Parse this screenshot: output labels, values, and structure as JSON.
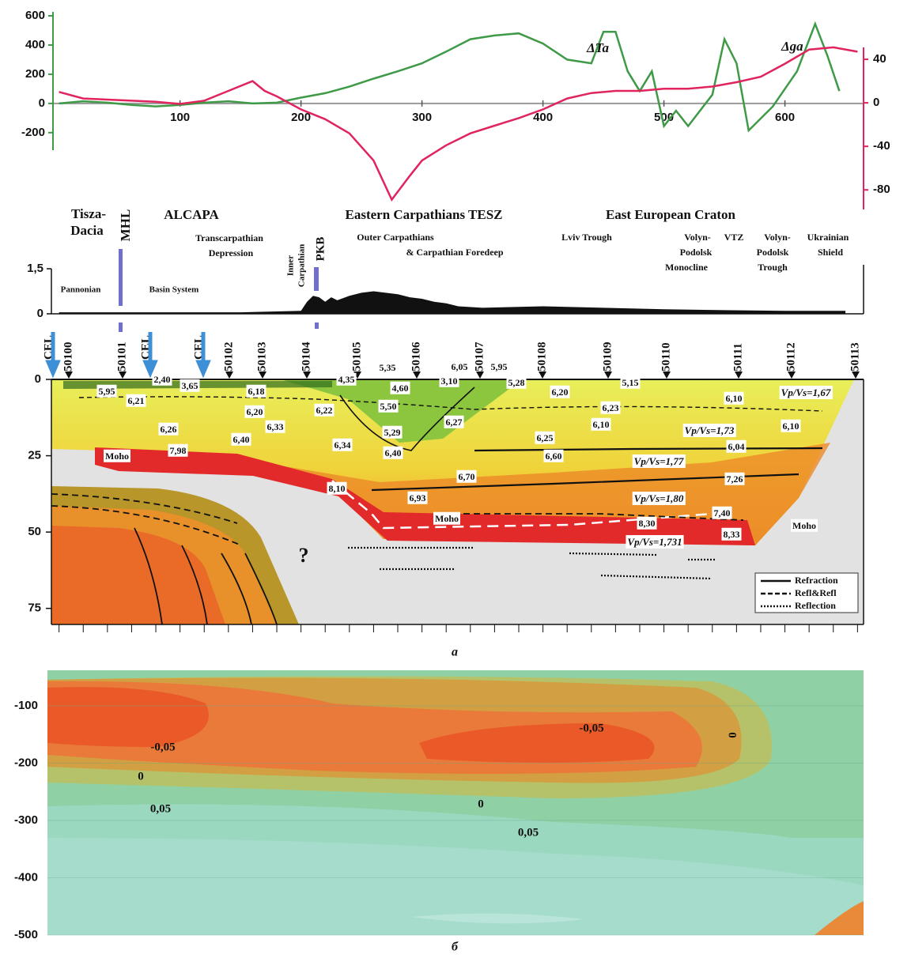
{
  "chart_data": [
    {
      "type": "line",
      "xlim": [
        -5,
        665
      ],
      "xticks": [
        100,
        200,
        300,
        400,
        500,
        600
      ],
      "ylim": [
        -320,
        600
      ],
      "yticks": [
        -200,
        0,
        200,
        400,
        600
      ],
      "y2lim": [
        -98,
        80
      ],
      "y2ticks": [
        -80,
        -40,
        0,
        40
      ],
      "series": [
        {
          "name": "ΔTa",
          "color": "#3f9a48",
          "x": [
            0,
            20,
            40,
            60,
            80,
            100,
            120,
            140,
            160,
            180,
            200,
            220,
            240,
            260,
            280,
            300,
            320,
            340,
            360,
            380,
            400,
            420,
            440,
            450,
            460,
            470,
            480,
            490,
            500,
            510,
            520,
            540,
            550,
            560,
            570,
            590,
            610,
            625,
            635,
            645
          ],
          "values": [
            0,
            15,
            5,
            -10,
            -20,
            -10,
            5,
            15,
            0,
            5,
            40,
            70,
            115,
            170,
            220,
            275,
            355,
            440,
            465,
            480,
            410,
            300,
            275,
            490,
            490,
            220,
            85,
            220,
            -155,
            -50,
            -155,
            60,
            440,
            275,
            -185,
            -20,
            220,
            545,
            330,
            85
          ]
        },
        {
          "name": "Δga",
          "color": "#e0245e",
          "axis": "y2",
          "x": [
            0,
            20,
            40,
            60,
            80,
            100,
            120,
            140,
            160,
            170,
            180,
            200,
            220,
            240,
            260,
            275,
            290,
            300,
            320,
            340,
            360,
            380,
            400,
            420,
            440,
            460,
            480,
            500,
            520,
            540,
            560,
            580,
            600,
            620,
            640,
            660
          ],
          "values": [
            10,
            4,
            3,
            2,
            1,
            -1,
            2,
            11,
            20,
            11,
            6,
            -6,
            -15,
            -28,
            -53,
            -89,
            -67,
            -53,
            -39,
            -28,
            -21,
            -14,
            -6,
            4,
            9,
            11,
            11,
            13,
            13,
            15,
            19,
            24,
            36,
            49,
            51,
            47
          ]
        }
      ]
    },
    {
      "type": "section",
      "region_labels": [
        "Tisza-",
        "Dacia",
        "MHL",
        "ALCAPA",
        "Transcarpathian",
        "Depression",
        "Inner",
        "Carpathian",
        "PKB",
        "Eastern Carpathians TESZ",
        "Outer Carpathians",
        "& Carpathian Foredeep",
        "East European Craton",
        "Lviv Trough",
        "Volyn-",
        "Podolsk",
        "Monocline",
        "VTZ",
        "Volyn-",
        "Podolsk",
        "Trough",
        "Ukrainian",
        "Shield",
        "Pannonian",
        "Basin System"
      ],
      "topography": {
        "x": [
          0,
          50,
          100,
          150,
          200,
          205,
          210,
          215,
          220,
          225,
          230,
          240,
          250,
          260,
          270,
          280,
          290,
          300,
          310,
          320,
          330,
          350,
          400,
          450,
          500,
          550,
          600,
          650
        ],
        "values": [
          0.05,
          0.05,
          0.05,
          0.05,
          0.1,
          0.4,
          0.6,
          0.55,
          0.4,
          0.55,
          0.45,
          0.6,
          0.7,
          0.75,
          0.7,
          0.65,
          0.55,
          0.5,
          0.4,
          0.35,
          0.25,
          0.2,
          0.25,
          0.2,
          0.15,
          0.12,
          0.1,
          0.1
        ],
        "ylim": [
          0,
          1.5
        ],
        "yticks": [
          0,
          {
            "value": 1.5,
            "label": "1,5"
          }
        ]
      },
      "stations": [
        "CEL",
        "50100",
        "50101",
        "CEL",
        "CEL",
        "50102",
        "50103",
        "50104",
        "50105",
        "50106",
        "50107",
        "50108",
        "50109",
        "50110",
        "50111",
        "50112",
        "50113"
      ],
      "ylim": [
        0,
        80
      ],
      "yticks": [
        0,
        25,
        50,
        75
      ],
      "velocity_labels": [
        "2,40",
        "5,95",
        "3,65",
        "6,21",
        "6,18",
        "6,20",
        "6,22",
        "6,33",
        "6,26",
        "6,40",
        "7,98",
        "6,34",
        "4,35",
        "5,35",
        "4,60",
        "5,50",
        "5,29",
        "6,40",
        "6,05",
        "5,95",
        "3,10",
        "5,28",
        "6,27",
        "6,20",
        "5,15",
        "6,23",
        "6,10",
        "6,25",
        "6,60",
        "6,70",
        "8,10",
        "6,93",
        "6,10",
        "6,10",
        "6,04",
        "7,26",
        "7,40",
        "8,30",
        "8,33"
      ],
      "ratio_labels": [
        "Vp/Vs=1,67",
        "Vp/Vs=1,73",
        "Vp/Vs=1,77",
        "Vp/Vs=1,80",
        "Vp/Vs=1,731"
      ],
      "moho_labels": [
        "Moho",
        "Moho",
        "Moho"
      ],
      "question": "?",
      "legend": [
        {
          "name": "Refraction",
          "style": "solid"
        },
        {
          "name": "Refl&Refl",
          "style": "dashed"
        },
        {
          "name": "Reflection",
          "style": "dotted"
        }
      ],
      "caption": "a"
    },
    {
      "type": "contour",
      "ylim": [
        -38,
        -500
      ],
      "yticks": [
        -100,
        -200,
        -300,
        -400,
        -500
      ],
      "contour_labels": [
        "-0,05",
        "-0,05",
        "0",
        "0",
        "0",
        "0,05",
        "0,05"
      ],
      "caption": "б"
    }
  ]
}
